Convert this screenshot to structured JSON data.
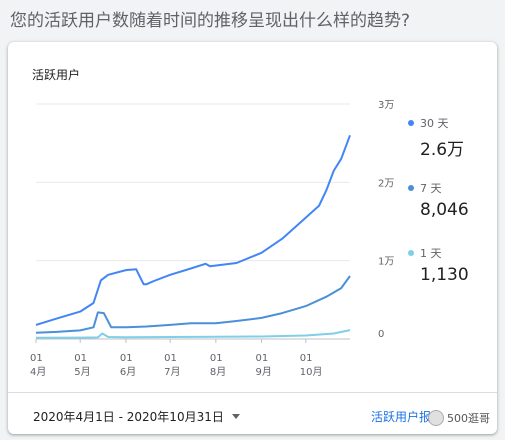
{
  "question": "您的活跃用户数随着时间的推移呈现出什么样的趋势?",
  "card": {
    "title": "活跃用户",
    "date_range": "2020年4月1日 - 2020年10月31日",
    "report_link": "活跃用户报告",
    "watermark": "500逛哥"
  },
  "legend": [
    {
      "label": "30 天",
      "value": "2.6万",
      "color": "#4285f4"
    },
    {
      "label": "7 天",
      "value": "8,046",
      "color": "#4a90d9"
    },
    {
      "label": "1 天",
      "value": "1,130",
      "color": "#7fcfe8"
    }
  ],
  "chart_data": {
    "type": "line",
    "title": "活跃用户",
    "y_ticks": [
      "0",
      "1万",
      "2万",
      "3万"
    ],
    "ylim": [
      0,
      30000
    ],
    "x_ticks": [
      {
        "day": "01",
        "month": "4月"
      },
      {
        "day": "01",
        "month": "5月"
      },
      {
        "day": "01",
        "month": "6月"
      },
      {
        "day": "01",
        "month": "7月"
      },
      {
        "day": "01",
        "month": "8月"
      },
      {
        "day": "01",
        "month": "9月"
      },
      {
        "day": "01",
        "month": "10月"
      }
    ],
    "x_range": [
      "2020-04-01",
      "2020-10-31"
    ],
    "grid": true,
    "series": [
      {
        "name": "30 天",
        "color": "#4285f4",
        "x": [
          "2020-04-01",
          "2020-04-15",
          "2020-05-01",
          "2020-05-10",
          "2020-05-15",
          "2020-05-20",
          "2020-06-01",
          "2020-06-08",
          "2020-06-13",
          "2020-06-15",
          "2020-06-20",
          "2020-07-01",
          "2020-07-15",
          "2020-07-25",
          "2020-07-28",
          "2020-08-15",
          "2020-09-01",
          "2020-09-15",
          "2020-10-01",
          "2020-10-10",
          "2020-10-15",
          "2020-10-20",
          "2020-10-25",
          "2020-10-31"
        ],
        "y": [
          1800,
          2600,
          3500,
          4600,
          7500,
          8200,
          8800,
          8900,
          7000,
          7000,
          7400,
          8200,
          9000,
          9600,
          9300,
          9700,
          11000,
          12800,
          15500,
          17000,
          19000,
          21500,
          23000,
          26000
        ]
      },
      {
        "name": "7 天",
        "color": "#4a90d9",
        "x": [
          "2020-04-01",
          "2020-04-15",
          "2020-05-01",
          "2020-05-10",
          "2020-05-13",
          "2020-05-17",
          "2020-05-22",
          "2020-06-01",
          "2020-06-15",
          "2020-07-01",
          "2020-07-15",
          "2020-08-01",
          "2020-08-15",
          "2020-09-01",
          "2020-09-15",
          "2020-10-01",
          "2020-10-15",
          "2020-10-25",
          "2020-10-31"
        ],
        "y": [
          800,
          900,
          1100,
          1500,
          3400,
          3300,
          1500,
          1500,
          1600,
          1800,
          2000,
          2000,
          2300,
          2700,
          3300,
          4200,
          5400,
          6500,
          8046
        ]
      },
      {
        "name": "1 天",
        "color": "#7fcfe8",
        "x": [
          "2020-04-01",
          "2020-05-01",
          "2020-05-13",
          "2020-05-16",
          "2020-05-20",
          "2020-06-01",
          "2020-07-01",
          "2020-08-01",
          "2020-09-01",
          "2020-10-01",
          "2020-10-20",
          "2020-10-31"
        ],
        "y": [
          150,
          180,
          200,
          700,
          250,
          220,
          260,
          280,
          320,
          450,
          700,
          1130
        ]
      }
    ]
  }
}
